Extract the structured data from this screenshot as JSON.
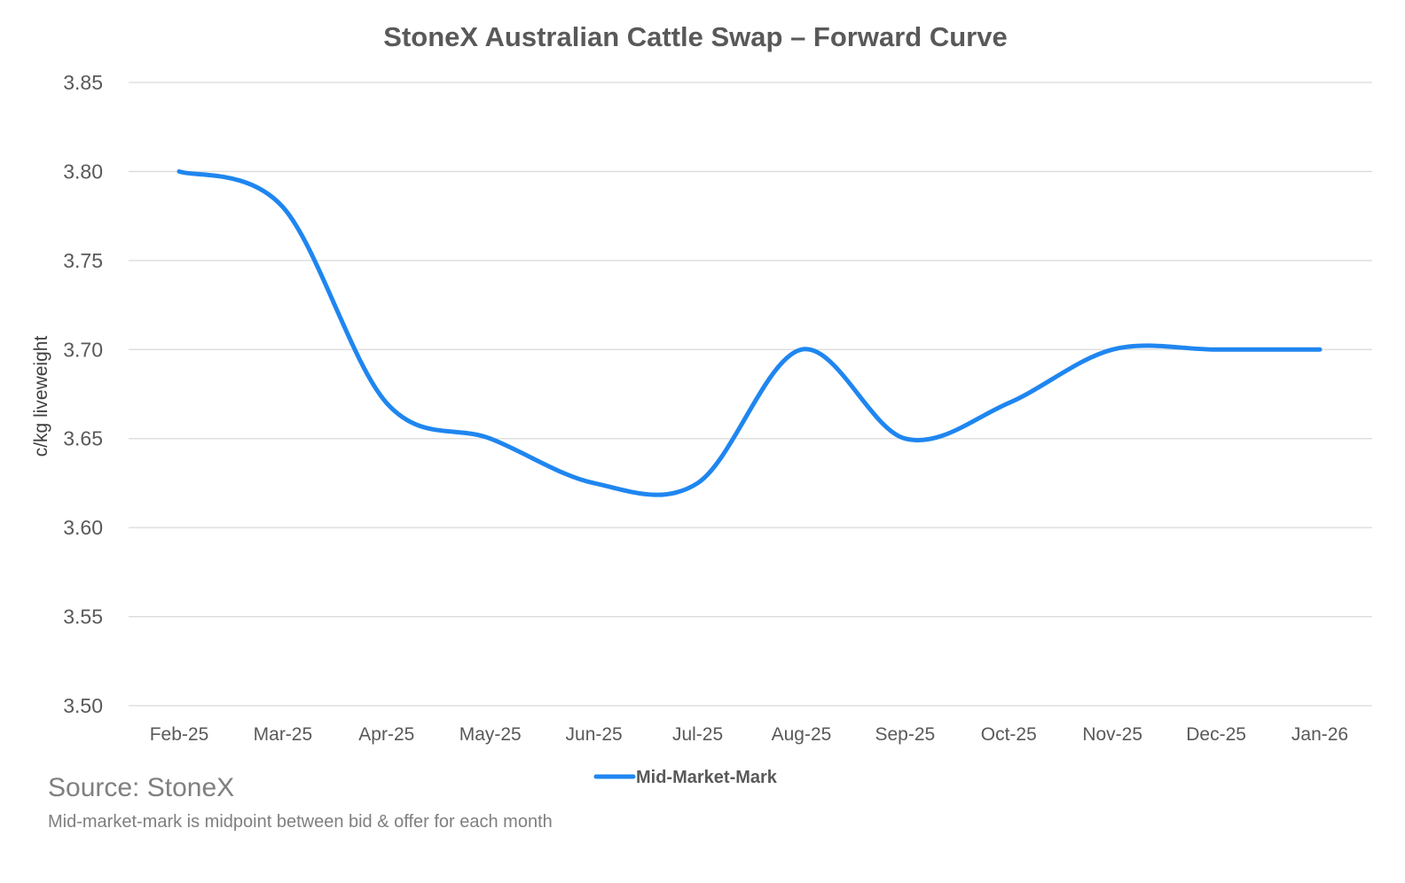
{
  "chart_data": {
    "type": "line",
    "title": "StoneX Australian Cattle Swap – Forward Curve",
    "xlabel": "",
    "ylabel": "c/kg liveweight",
    "categories": [
      "Feb-25",
      "Mar-25",
      "Apr-25",
      "May-25",
      "Jun-25",
      "Jul-25",
      "Aug-25",
      "Sep-25",
      "Oct-25",
      "Nov-25",
      "Dec-25",
      "Jan-26"
    ],
    "series": [
      {
        "name": "Mid-Market-Mark",
        "color": "#1f86f0",
        "values": [
          3.8,
          3.78,
          3.67,
          3.65,
          3.625,
          3.625,
          3.7,
          3.65,
          3.67,
          3.7,
          3.7,
          3.7
        ]
      }
    ],
    "ylim": [
      3.5,
      3.85
    ],
    "yticks": [
      "3.50",
      "3.55",
      "3.60",
      "3.65",
      "3.70",
      "3.75",
      "3.80",
      "3.85"
    ],
    "grid": true,
    "legend": "bottom-center"
  },
  "source": "Source: StoneX",
  "note": "Mid-market-mark is midpoint between bid & offer for each month"
}
